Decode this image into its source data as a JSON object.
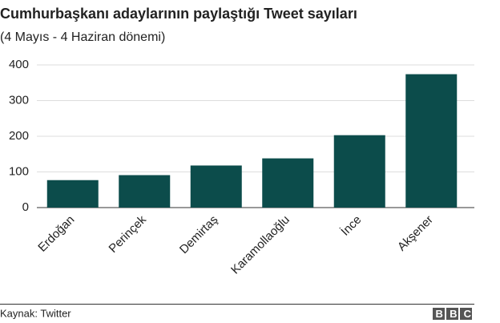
{
  "chart_data": {
    "type": "bar",
    "title": "Cumhurbaşkanı adaylarının paylaştığı Tweet sayıları",
    "subtitle": "(4 Mayıs - 4 Haziran dönemi)",
    "categories": [
      "Erdoğan",
      "Perinçek",
      "Demirtaş",
      "Karamollaoğlu",
      "İnce",
      "Akşener"
    ],
    "values": [
      77,
      91,
      118,
      138,
      203,
      374
    ],
    "color": "#0c4c4b",
    "ylim": [
      0,
      400
    ],
    "yticks": [
      0,
      100,
      200,
      300,
      400
    ],
    "grid": true,
    "source": "Kaynak: Twitter",
    "logo": "BBC"
  }
}
